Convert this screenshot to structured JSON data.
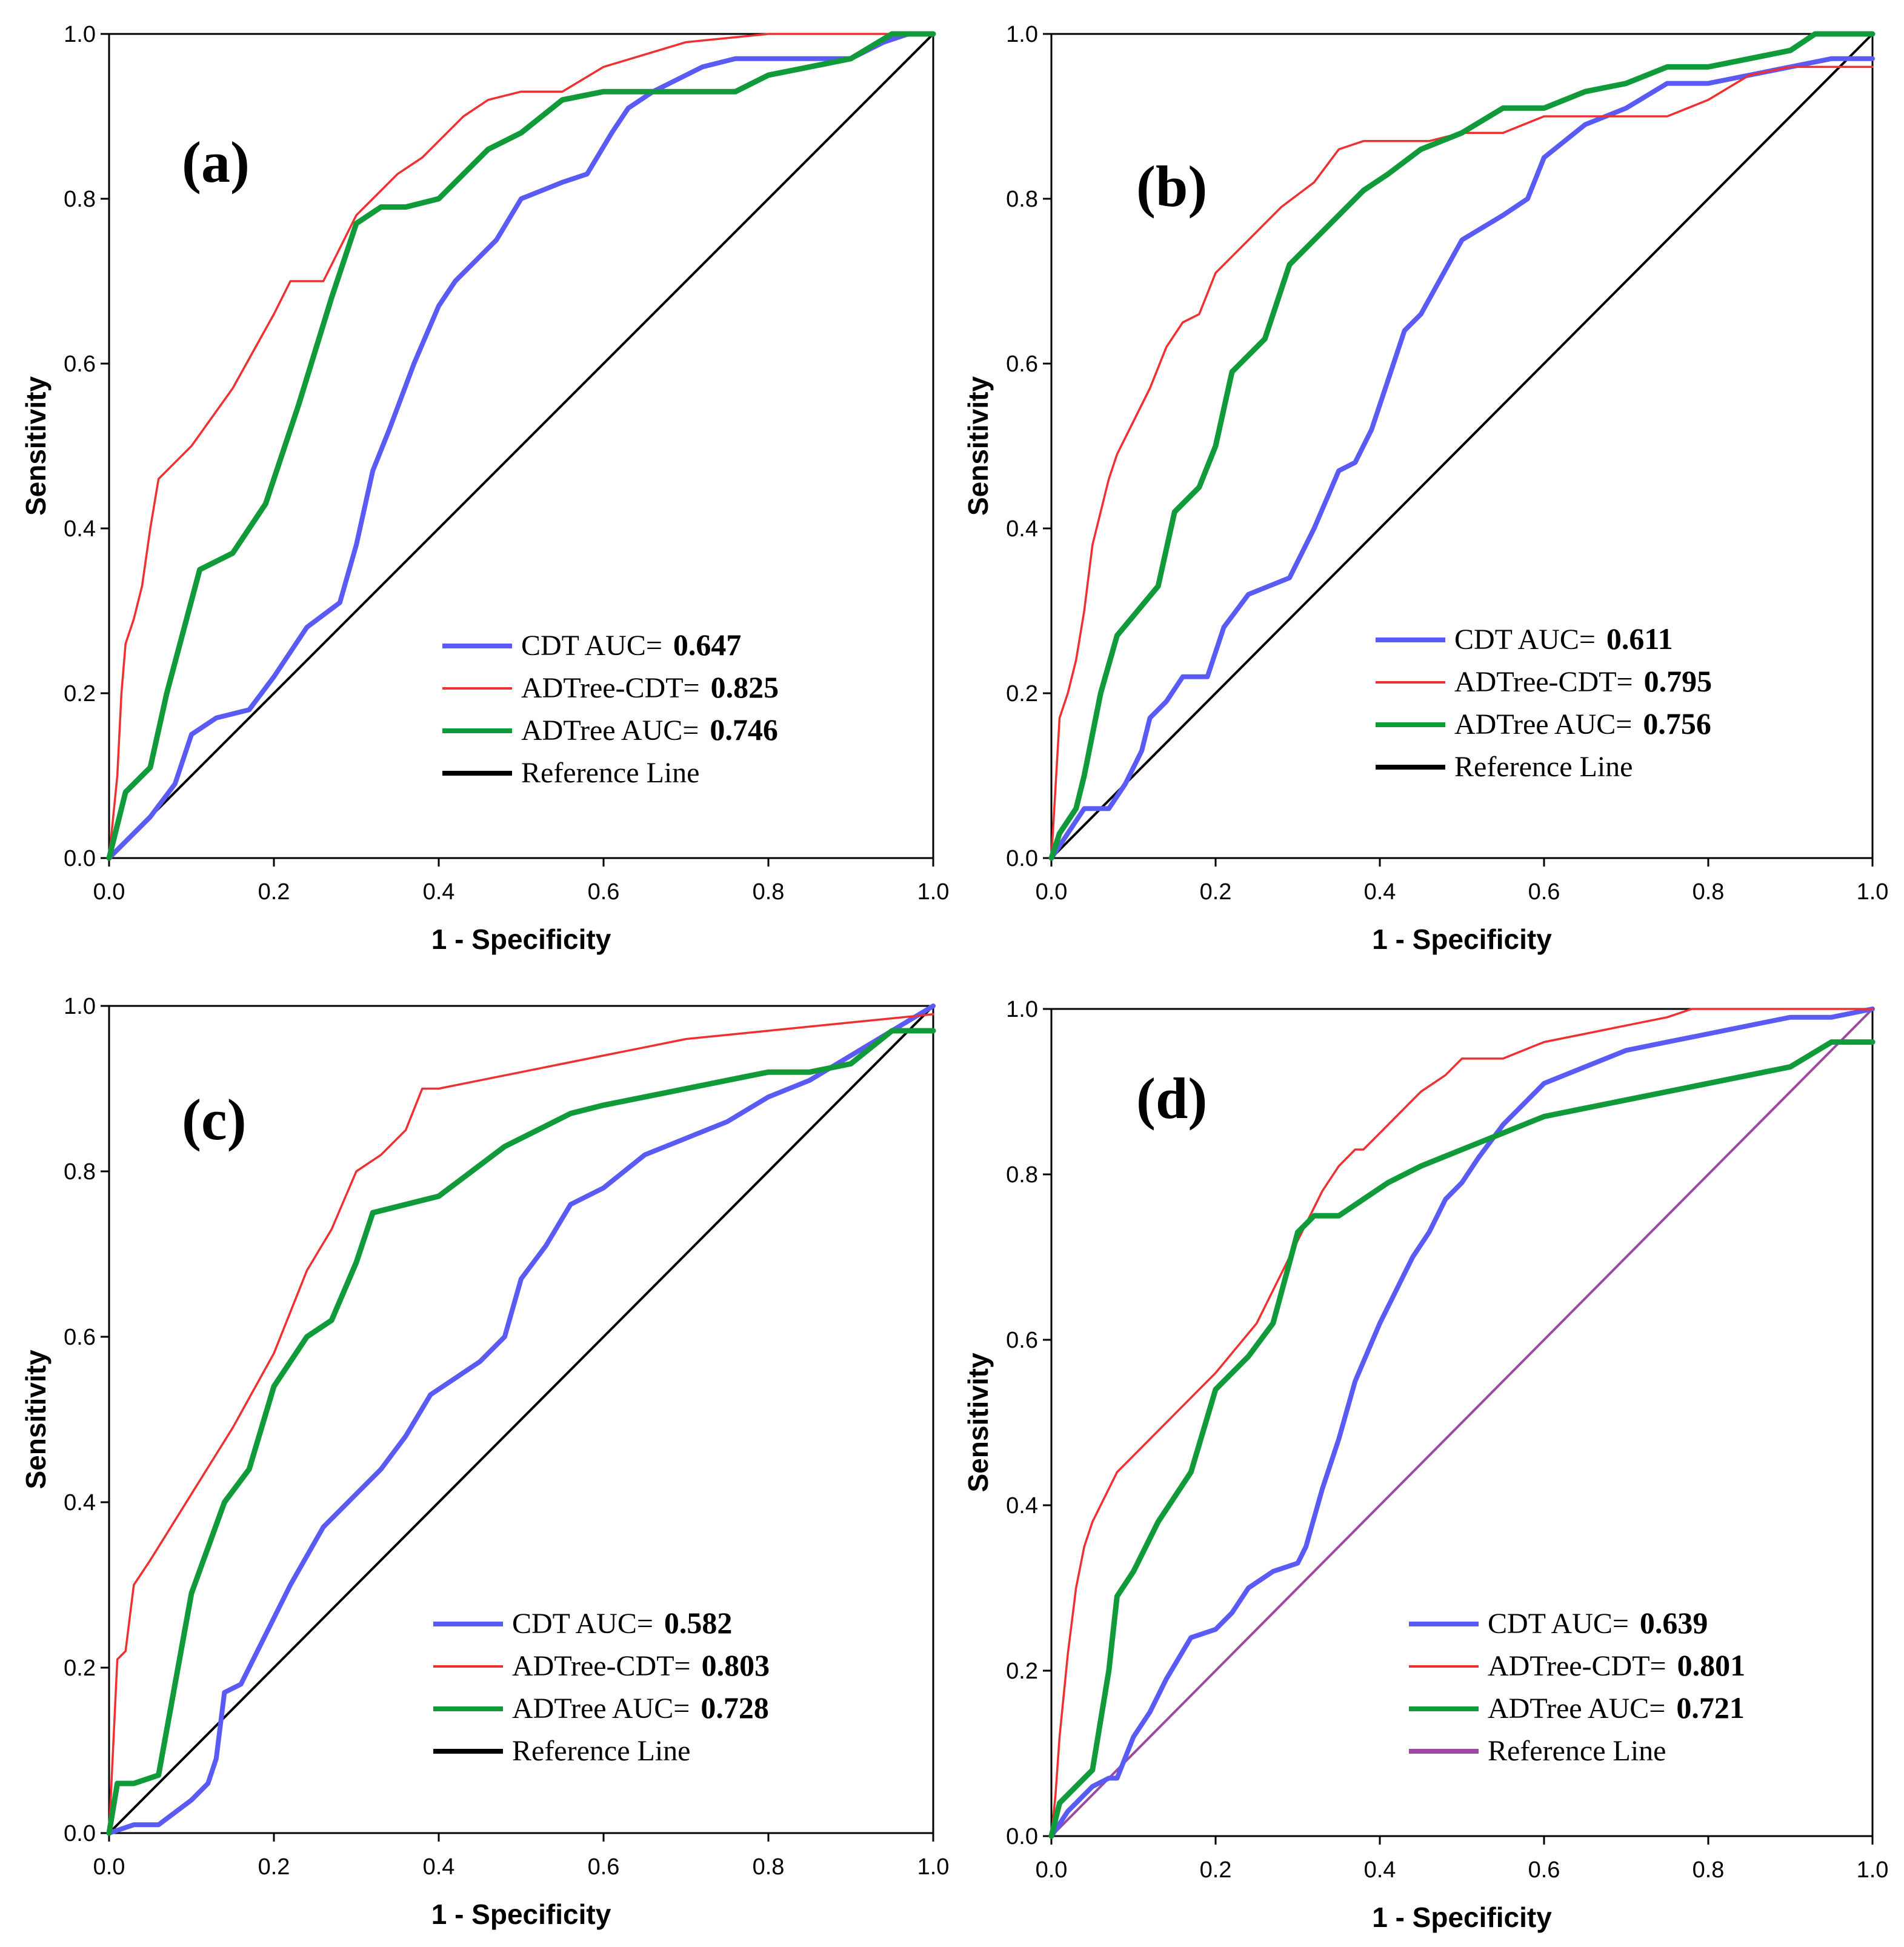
{
  "colors": {
    "cdt": "#5a5af5",
    "adtree_cdt": "#f03030",
    "adtree": "#109a3a",
    "reference": "#000000",
    "reference_alt": "#9a4aa0"
  },
  "chart_data": [
    {
      "type": "line",
      "panel_label": "(a)",
      "xlabel": "1 - Specificity",
      "ylabel": "Sensitivity",
      "xlim": [
        0,
        1
      ],
      "ylim": [
        0,
        1
      ],
      "xticks": [
        "0.0",
        "0.2",
        "0.4",
        "0.6",
        "0.8",
        "1.0"
      ],
      "yticks": [
        "0.0",
        "0.2",
        "0.4",
        "0.6",
        "0.8",
        "1.0"
      ],
      "legend_position": "bottom-right",
      "series": [
        {
          "key": "cdt",
          "name": "CDT AUC=",
          "value": "0.647",
          "x": [
            0,
            0.02,
            0.05,
            0.08,
            0.1,
            0.13,
            0.17,
            0.2,
            0.24,
            0.28,
            0.3,
            0.32,
            0.34,
            0.37,
            0.4,
            0.42,
            0.44,
            0.47,
            0.5,
            0.55,
            0.58,
            0.61,
            0.63,
            0.66,
            0.68,
            0.72,
            0.76,
            0.8,
            0.86,
            0.9,
            0.94,
            0.97,
            1.0
          ],
          "y": [
            0,
            0.02,
            0.05,
            0.09,
            0.15,
            0.17,
            0.18,
            0.22,
            0.28,
            0.31,
            0.38,
            0.47,
            0.52,
            0.6,
            0.67,
            0.7,
            0.72,
            0.75,
            0.8,
            0.82,
            0.83,
            0.88,
            0.91,
            0.93,
            0.94,
            0.96,
            0.97,
            0.97,
            0.97,
            0.97,
            0.99,
            1.0,
            1.0
          ]
        },
        {
          "key": "adtree_cdt",
          "name": "ADTree-CDT=",
          "value": "0.825",
          "x": [
            0,
            0.01,
            0.015,
            0.02,
            0.03,
            0.04,
            0.05,
            0.06,
            0.07,
            0.1,
            0.15,
            0.2,
            0.22,
            0.26,
            0.3,
            0.32,
            0.35,
            0.38,
            0.41,
            0.43,
            0.46,
            0.5,
            0.55,
            0.6,
            0.7,
            0.8,
            1.0
          ],
          "y": [
            0,
            0.1,
            0.2,
            0.26,
            0.29,
            0.33,
            0.4,
            0.46,
            0.47,
            0.5,
            0.57,
            0.66,
            0.7,
            0.7,
            0.78,
            0.8,
            0.83,
            0.85,
            0.88,
            0.9,
            0.92,
            0.93,
            0.93,
            0.96,
            0.99,
            1.0,
            1.0
          ]
        },
        {
          "key": "adtree",
          "name": "ADTree AUC=",
          "value": "0.746",
          "x": [
            0,
            0.02,
            0.05,
            0.07,
            0.11,
            0.15,
            0.19,
            0.23,
            0.27,
            0.3,
            0.33,
            0.36,
            0.4,
            0.43,
            0.46,
            0.5,
            0.55,
            0.6,
            0.7,
            0.76,
            0.8,
            0.85,
            0.9,
            0.95,
            1.0
          ],
          "y": [
            0,
            0.08,
            0.11,
            0.2,
            0.35,
            0.37,
            0.43,
            0.55,
            0.68,
            0.77,
            0.79,
            0.79,
            0.8,
            0.83,
            0.86,
            0.88,
            0.92,
            0.93,
            0.93,
            0.93,
            0.95,
            0.96,
            0.97,
            1.0,
            1.0
          ]
        },
        {
          "key": "reference",
          "name": "Reference Line",
          "value": "",
          "x": [
            0,
            1
          ],
          "y": [
            0,
            1
          ]
        }
      ]
    },
    {
      "type": "line",
      "panel_label": "(b)",
      "xlabel": "1 - Specificity",
      "ylabel": "Sensitivity",
      "xlim": [
        0,
        1
      ],
      "ylim": [
        0,
        1
      ],
      "xticks": [
        "0.0",
        "0.2",
        "0.4",
        "0.6",
        "0.8",
        "1.0"
      ],
      "yticks": [
        "0.0",
        "0.2",
        "0.4",
        "0.6",
        "0.8",
        "1.0"
      ],
      "legend_position": "bottom-right",
      "series": [
        {
          "key": "cdt",
          "name": "CDT AUC=",
          "value": "0.611",
          "x": [
            0,
            0.02,
            0.04,
            0.07,
            0.09,
            0.11,
            0.12,
            0.14,
            0.16,
            0.19,
            0.21,
            0.24,
            0.29,
            0.32,
            0.35,
            0.37,
            0.39,
            0.41,
            0.43,
            0.45,
            0.5,
            0.55,
            0.58,
            0.6,
            0.65,
            0.7,
            0.75,
            0.8,
            0.85,
            0.9,
            0.95,
            1.0
          ],
          "y": [
            0,
            0.03,
            0.06,
            0.06,
            0.09,
            0.13,
            0.17,
            0.19,
            0.22,
            0.22,
            0.28,
            0.32,
            0.34,
            0.4,
            0.47,
            0.48,
            0.52,
            0.58,
            0.64,
            0.66,
            0.75,
            0.78,
            0.8,
            0.85,
            0.89,
            0.91,
            0.94,
            0.94,
            0.95,
            0.96,
            0.97,
            0.97
          ]
        },
        {
          "key": "adtree_cdt",
          "name": "ADTree-CDT=",
          "value": "0.795",
          "x": [
            0,
            0.01,
            0.02,
            0.03,
            0.04,
            0.05,
            0.06,
            0.07,
            0.08,
            0.1,
            0.12,
            0.14,
            0.16,
            0.18,
            0.2,
            0.22,
            0.25,
            0.28,
            0.32,
            0.35,
            0.38,
            0.42,
            0.46,
            0.5,
            0.55,
            0.6,
            0.65,
            0.7,
            0.75,
            0.8,
            0.85,
            0.9,
            1.0
          ],
          "y": [
            0,
            0.17,
            0.2,
            0.24,
            0.3,
            0.38,
            0.42,
            0.46,
            0.49,
            0.53,
            0.57,
            0.62,
            0.65,
            0.66,
            0.71,
            0.73,
            0.76,
            0.79,
            0.82,
            0.86,
            0.87,
            0.87,
            0.87,
            0.88,
            0.88,
            0.9,
            0.9,
            0.9,
            0.9,
            0.92,
            0.95,
            0.96,
            0.96
          ]
        },
        {
          "key": "adtree",
          "name": "ADTree AUC=",
          "value": "0.756",
          "x": [
            0,
            0.01,
            0.03,
            0.04,
            0.06,
            0.08,
            0.13,
            0.15,
            0.18,
            0.2,
            0.22,
            0.26,
            0.29,
            0.32,
            0.35,
            0.38,
            0.41,
            0.45,
            0.5,
            0.55,
            0.6,
            0.65,
            0.7,
            0.75,
            0.8,
            0.85,
            0.9,
            0.93,
            1.0
          ],
          "y": [
            0,
            0.03,
            0.06,
            0.1,
            0.2,
            0.27,
            0.33,
            0.42,
            0.45,
            0.5,
            0.59,
            0.63,
            0.72,
            0.75,
            0.78,
            0.81,
            0.83,
            0.86,
            0.88,
            0.91,
            0.91,
            0.93,
            0.94,
            0.96,
            0.96,
            0.97,
            0.98,
            1.0,
            1.0
          ]
        },
        {
          "key": "reference",
          "name": "Reference Line",
          "value": "",
          "x": [
            0,
            1
          ],
          "y": [
            0,
            1
          ]
        }
      ]
    },
    {
      "type": "line",
      "panel_label": "(c)",
      "xlabel": "1 - Specificity",
      "ylabel": "Sensitivity",
      "xlim": [
        0,
        1
      ],
      "ylim": [
        0,
        1
      ],
      "xticks": [
        "0.0",
        "0.2",
        "0.4",
        "0.6",
        "0.8",
        "1.0"
      ],
      "yticks": [
        "0.0",
        "0.2",
        "0.4",
        "0.6",
        "0.8",
        "1.0"
      ],
      "legend_position": "bottom-right",
      "series": [
        {
          "key": "cdt",
          "name": "CDT AUC=",
          "value": "0.582",
          "x": [
            0,
            0.03,
            0.06,
            0.1,
            0.12,
            0.13,
            0.14,
            0.16,
            0.18,
            0.22,
            0.26,
            0.3,
            0.33,
            0.36,
            0.39,
            0.42,
            0.45,
            0.48,
            0.5,
            0.53,
            0.56,
            0.6,
            0.65,
            0.7,
            0.75,
            0.8,
            0.85,
            0.9,
            0.95,
            1.0
          ],
          "y": [
            0,
            0.01,
            0.01,
            0.04,
            0.06,
            0.09,
            0.17,
            0.18,
            0.22,
            0.3,
            0.37,
            0.41,
            0.44,
            0.48,
            0.53,
            0.55,
            0.57,
            0.6,
            0.67,
            0.71,
            0.76,
            0.78,
            0.82,
            0.84,
            0.86,
            0.89,
            0.91,
            0.94,
            0.97,
            1.0
          ]
        },
        {
          "key": "adtree_cdt",
          "name": "ADTree-CDT=",
          "value": "0.803",
          "x": [
            0,
            0.01,
            0.02,
            0.03,
            0.05,
            0.1,
            0.15,
            0.2,
            0.24,
            0.27,
            0.3,
            0.33,
            0.36,
            0.38,
            0.4,
            0.45,
            0.5,
            0.55,
            0.6,
            0.65,
            0.7,
            0.8,
            0.9,
            1.0
          ],
          "y": [
            0,
            0.21,
            0.22,
            0.3,
            0.33,
            0.41,
            0.49,
            0.58,
            0.68,
            0.73,
            0.8,
            0.82,
            0.85,
            0.9,
            0.9,
            0.91,
            0.92,
            0.93,
            0.94,
            0.95,
            0.96,
            0.97,
            0.98,
            0.99
          ]
        },
        {
          "key": "adtree",
          "name": "ADTree AUC=",
          "value": "0.728",
          "x": [
            0,
            0.01,
            0.03,
            0.06,
            0.08,
            0.1,
            0.14,
            0.17,
            0.2,
            0.24,
            0.27,
            0.3,
            0.32,
            0.36,
            0.4,
            0.44,
            0.48,
            0.52,
            0.56,
            0.6,
            0.65,
            0.7,
            0.75,
            0.8,
            0.85,
            0.9,
            0.95,
            1.0
          ],
          "y": [
            0,
            0.06,
            0.06,
            0.07,
            0.18,
            0.29,
            0.4,
            0.44,
            0.54,
            0.6,
            0.62,
            0.69,
            0.75,
            0.76,
            0.77,
            0.8,
            0.83,
            0.85,
            0.87,
            0.88,
            0.89,
            0.9,
            0.91,
            0.92,
            0.92,
            0.93,
            0.97,
            0.97
          ]
        },
        {
          "key": "reference",
          "name": "Reference Line",
          "value": "",
          "x": [
            0,
            1
          ],
          "y": [
            0,
            1
          ]
        }
      ]
    },
    {
      "type": "line",
      "panel_label": "(d)",
      "xlabel": "1 - Specificity",
      "ylabel": "Sensitivity",
      "xlim": [
        0,
        1
      ],
      "ylim": [
        0,
        1
      ],
      "xticks": [
        "0.0",
        "0.2",
        "0.4",
        "0.6",
        "0.8",
        "1.0"
      ],
      "yticks": [
        "0.0",
        "0.2",
        "0.4",
        "0.6",
        "0.8",
        "1.0"
      ],
      "legend_position": "bottom-right",
      "series": [
        {
          "key": "cdt",
          "name": "CDT AUC=",
          "value": "0.639",
          "x": [
            0,
            0.02,
            0.03,
            0.05,
            0.07,
            0.08,
            0.1,
            0.12,
            0.14,
            0.17,
            0.2,
            0.22,
            0.24,
            0.27,
            0.3,
            0.31,
            0.33,
            0.35,
            0.37,
            0.4,
            0.44,
            0.46,
            0.48,
            0.5,
            0.52,
            0.55,
            0.58,
            0.6,
            0.65,
            0.7,
            0.75,
            0.8,
            0.85,
            0.9,
            0.95,
            1.0
          ],
          "y": [
            0,
            0.03,
            0.04,
            0.06,
            0.07,
            0.07,
            0.12,
            0.15,
            0.19,
            0.24,
            0.25,
            0.27,
            0.3,
            0.32,
            0.33,
            0.35,
            0.42,
            0.48,
            0.55,
            0.62,
            0.7,
            0.73,
            0.77,
            0.79,
            0.82,
            0.86,
            0.89,
            0.91,
            0.93,
            0.95,
            0.96,
            0.97,
            0.98,
            0.99,
            0.99,
            1.0
          ]
        },
        {
          "key": "adtree_cdt",
          "name": "ADTree-CDT=",
          "value": "0.801",
          "x": [
            0,
            0.005,
            0.01,
            0.015,
            0.02,
            0.03,
            0.04,
            0.05,
            0.06,
            0.08,
            0.1,
            0.15,
            0.2,
            0.25,
            0.3,
            0.33,
            0.35,
            0.37,
            0.38,
            0.4,
            0.42,
            0.45,
            0.48,
            0.5,
            0.55,
            0.6,
            0.65,
            0.7,
            0.75,
            0.78,
            0.8,
            1.0
          ],
          "y": [
            0,
            0.05,
            0.12,
            0.17,
            0.22,
            0.3,
            0.35,
            0.38,
            0.4,
            0.44,
            0.46,
            0.51,
            0.56,
            0.62,
            0.72,
            0.78,
            0.81,
            0.83,
            0.83,
            0.85,
            0.87,
            0.9,
            0.92,
            0.94,
            0.94,
            0.96,
            0.97,
            0.98,
            0.99,
            1.0,
            1.0,
            1.0
          ]
        },
        {
          "key": "adtree",
          "name": "ADTree AUC=",
          "value": "0.721",
          "x": [
            0,
            0.01,
            0.03,
            0.05,
            0.07,
            0.08,
            0.1,
            0.13,
            0.17,
            0.2,
            0.24,
            0.27,
            0.3,
            0.32,
            0.35,
            0.38,
            0.41,
            0.45,
            0.5,
            0.55,
            0.6,
            0.65,
            0.7,
            0.75,
            0.8,
            0.85,
            0.9,
            0.95,
            1.0
          ],
          "y": [
            0,
            0.04,
            0.06,
            0.08,
            0.2,
            0.29,
            0.32,
            0.38,
            0.44,
            0.54,
            0.58,
            0.62,
            0.73,
            0.75,
            0.75,
            0.77,
            0.79,
            0.81,
            0.83,
            0.85,
            0.87,
            0.88,
            0.89,
            0.9,
            0.91,
            0.92,
            0.93,
            0.96,
            0.96
          ]
        },
        {
          "key": "reference_alt",
          "name": "Reference Line",
          "value": "",
          "x": [
            0,
            1
          ],
          "y": [
            0,
            1
          ]
        }
      ]
    }
  ]
}
